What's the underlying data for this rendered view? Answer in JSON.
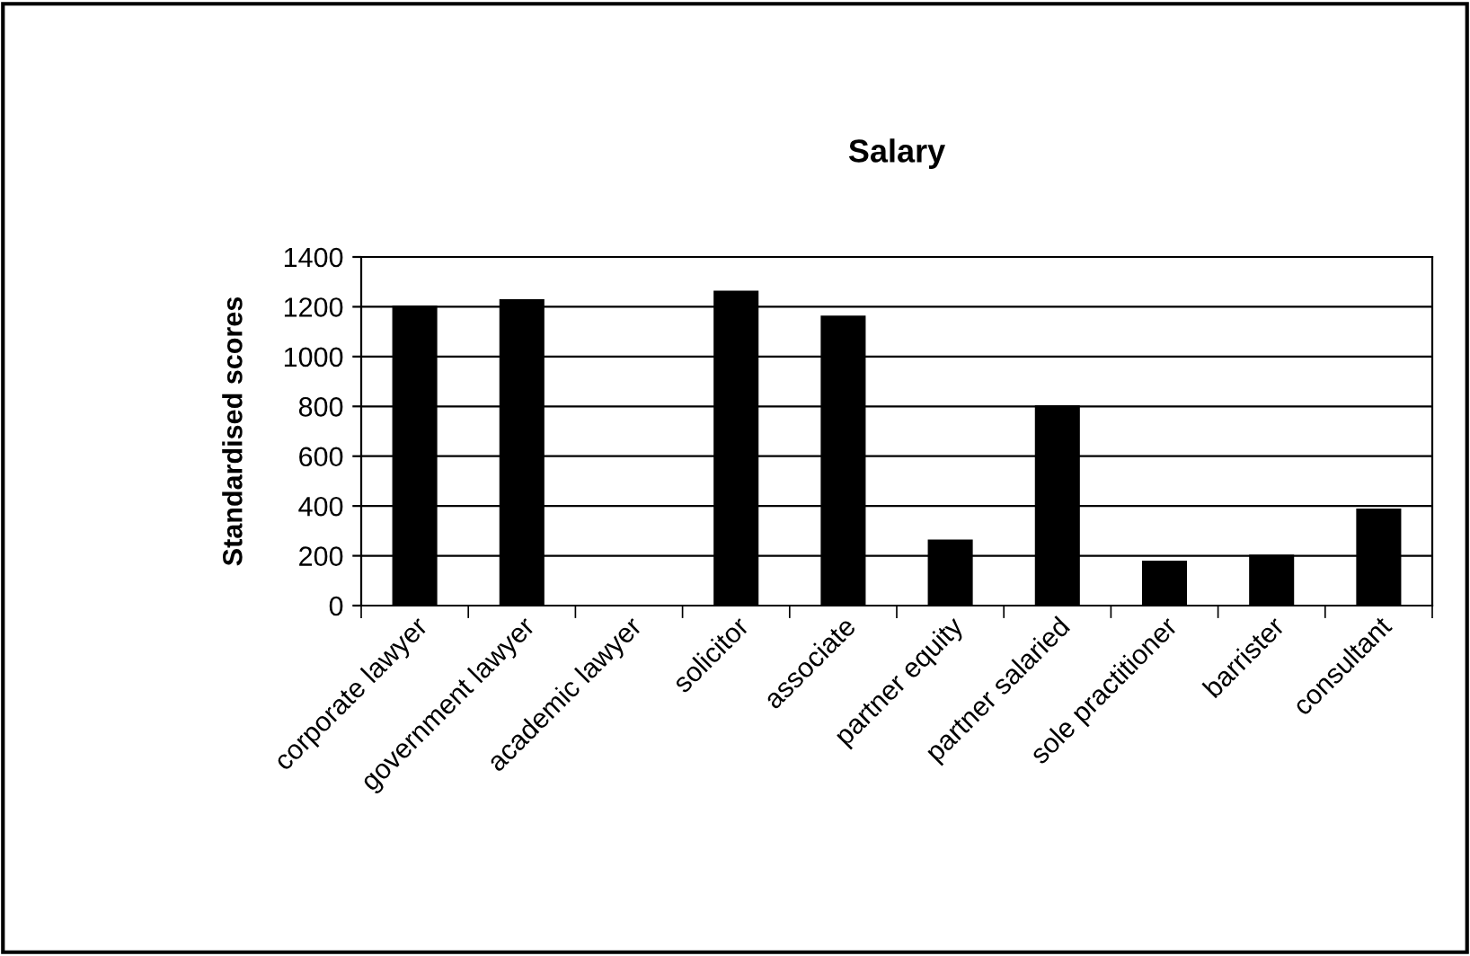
{
  "chart_data": {
    "type": "bar",
    "title": "Salary",
    "ylabel": "Standardised scores",
    "categories": [
      "corporate lawyer",
      "government lawyer",
      "academic lawyer",
      "solicitor",
      "associate",
      "partner equity",
      "partner salaried",
      "sole practitioner",
      "barrister",
      "consultant"
    ],
    "values": [
      1205,
      1230,
      0,
      1265,
      1165,
      265,
      805,
      180,
      205,
      390
    ],
    "color": "#000000",
    "ylim": [
      0,
      1400
    ],
    "yticks": [
      0,
      200,
      400,
      600,
      800,
      1000,
      1200,
      1400
    ],
    "grid": "y",
    "legend": false
  }
}
